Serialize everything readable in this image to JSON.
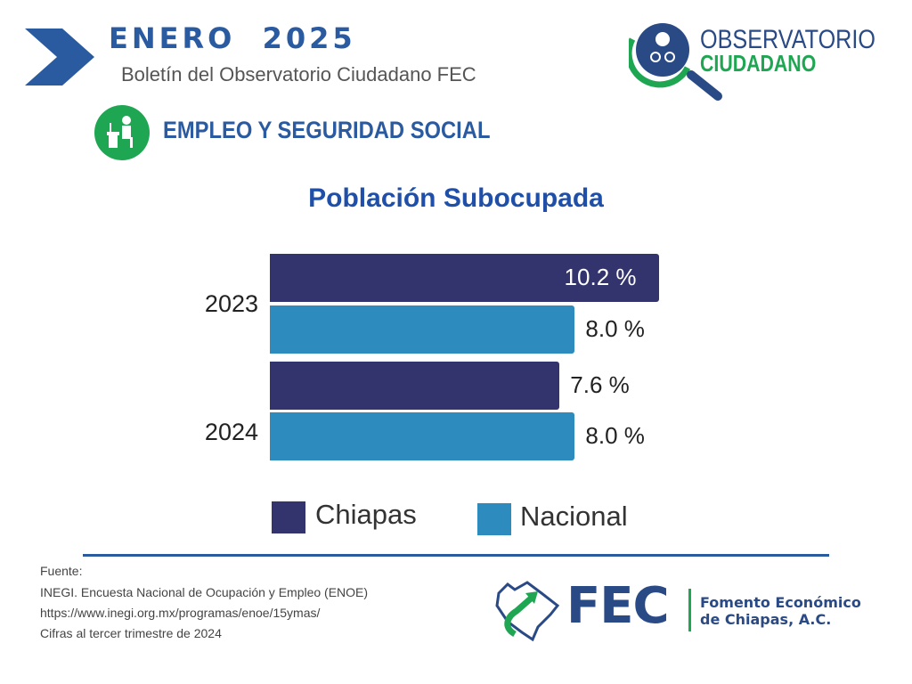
{
  "header": {
    "month": "ENERO  2025",
    "subtitle": "Boletín del Observatorio Ciudadano FEC",
    "section": "EMPLEO Y SEGURIDAD SOCIAL",
    "section_icon": "desk-worker-icon",
    "logo": {
      "line1": "OBSERVATORIO",
      "line2": "CIUDADANO"
    }
  },
  "colors": {
    "brand_blue": "#2a5aa0",
    "green": "#1fa652",
    "chiapas": "#33346e",
    "nacional": "#2e8bbd"
  },
  "chart_data": {
    "type": "bar",
    "orientation": "horizontal",
    "title": "Población Subocupada",
    "categories": [
      "2023",
      "2024"
    ],
    "series": [
      {
        "name": "Chiapas",
        "values": [
          10.2,
          7.6
        ],
        "labels": [
          "10.2 %",
          "7.6 %"
        ]
      },
      {
        "name": "Nacional",
        "values": [
          8.0,
          8.0
        ],
        "labels": [
          "8.0 %",
          "8.0 %"
        ]
      }
    ],
    "unit": "%",
    "grid": false,
    "legend": "bottom"
  },
  "footer": {
    "source_lines": [
      "Fuente:",
      "INEGI. Encuesta Nacional de Ocupación y Empleo (ENOE)",
      "https://www.inegi.org.mx/programas/enoe/15ymas/",
      "Cifras al tercer trimestre de 2024"
    ],
    "fec_logo": "FEC",
    "fec_name1": "Fomento Económico",
    "fec_name2": "de Chiapas, A.C."
  }
}
